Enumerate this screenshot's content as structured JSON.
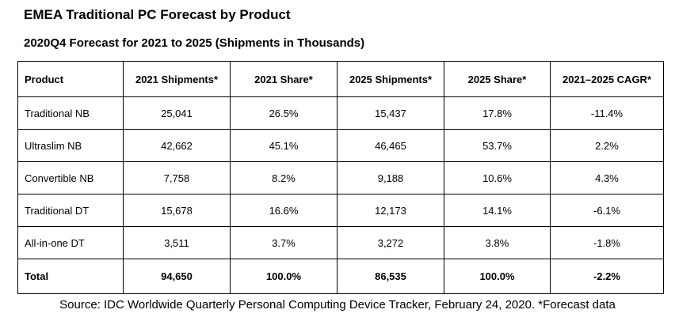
{
  "title": "EMEA Traditional PC Forecast by Product",
  "subtitle": "2020Q4 Forecast for 2021 to 2025 (Shipments in Thousands)",
  "table": {
    "headers": [
      "Product",
      "2021 Shipments*",
      "2021 Share*",
      "2025 Shipments*",
      "2025 Share*",
      "2021–2025 CAGR*"
    ],
    "rows": [
      [
        "Traditional NB",
        "25,041",
        "26.5%",
        "15,437",
        "17.8%",
        "-11.4%"
      ],
      [
        "Ultraslim NB",
        "42,662",
        "45.1%",
        "46,465",
        "53.7%",
        "2.2%"
      ],
      [
        "Convertible NB",
        "7,758",
        "8.2%",
        "9,188",
        "10.6%",
        "4.3%"
      ],
      [
        "Traditional DT",
        "15,678",
        "16.6%",
        "12,173",
        "14.1%",
        "-6.1%"
      ],
      [
        "All-in-one DT",
        "3,511",
        "3.7%",
        "3,272",
        "3.8%",
        "-1.8%"
      ]
    ],
    "total": [
      "Total",
      "94,650",
      "100.0%",
      "86,535",
      "100.0%",
      "-2.2%"
    ]
  },
  "footnote": "Source: IDC Worldwide Quarterly Personal Computing Device Tracker, February 24, 2020. *Forecast data"
}
